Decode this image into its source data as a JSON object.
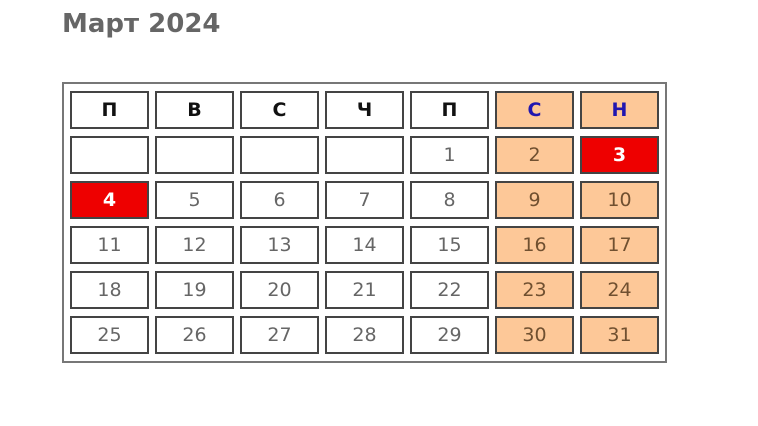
{
  "title": "Март 2024",
  "weekdays": [
    "П",
    "В",
    "С",
    "Ч",
    "П",
    "С",
    "Н"
  ],
  "weeks": [
    [
      "",
      "",
      "",
      "",
      "1",
      "2",
      "3"
    ],
    [
      "4",
      "5",
      "6",
      "7",
      "8",
      "9",
      "10"
    ],
    [
      "11",
      "12",
      "13",
      "14",
      "15",
      "16",
      "17"
    ],
    [
      "18",
      "19",
      "20",
      "21",
      "22",
      "23",
      "24"
    ],
    [
      "25",
      "26",
      "27",
      "28",
      "29",
      "30",
      "31"
    ]
  ],
  "highlighted_days": [
    "3",
    "4"
  ],
  "colors": {
    "weekend": "#fdc898",
    "highlight": "#ee0000",
    "weekend_header_text": "#2016b0"
  }
}
